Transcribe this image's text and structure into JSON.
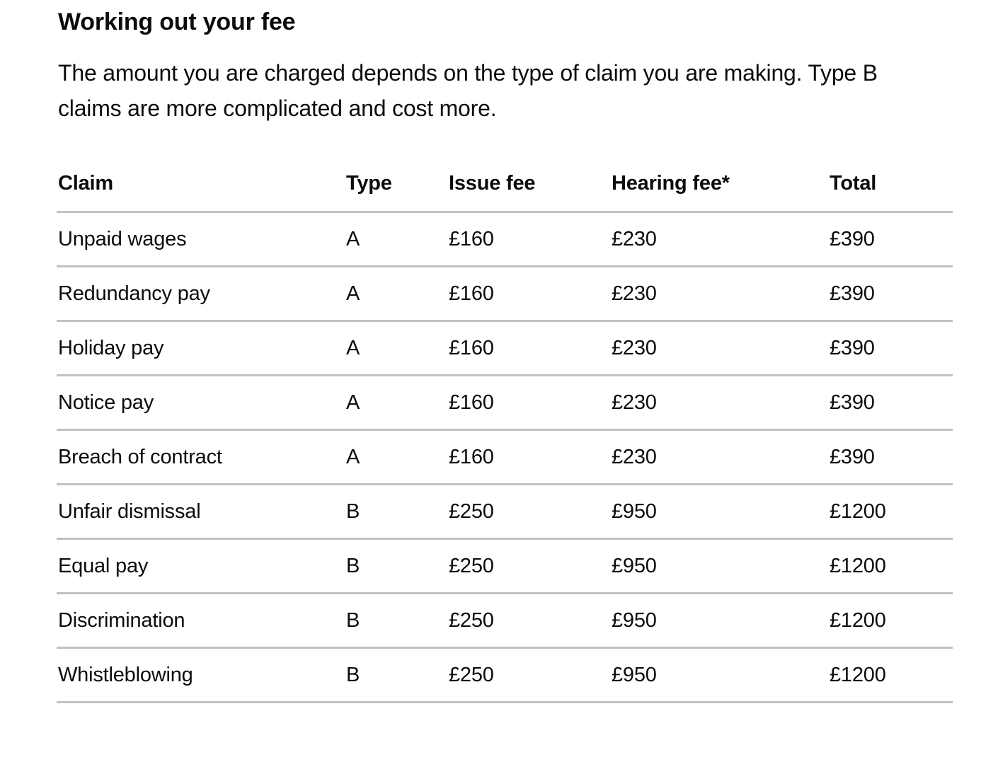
{
  "page": {
    "heading": "Working out your fee",
    "intro": "The amount you are charged depends on the type of claim you are making. Type B claims are more complicated and cost more."
  },
  "table": {
    "columns": [
      "Claim",
      "Type",
      "Issue fee",
      "Hearing fee*",
      "Total"
    ],
    "rows": [
      {
        "claim": "Unpaid wages",
        "type": "A",
        "issue_fee": "£160",
        "hearing_fee": "£230",
        "total": "£390"
      },
      {
        "claim": "Redundancy pay",
        "type": "A",
        "issue_fee": "£160",
        "hearing_fee": "£230",
        "total": "£390"
      },
      {
        "claim": "Holiday pay",
        "type": "A",
        "issue_fee": "£160",
        "hearing_fee": "£230",
        "total": "£390"
      },
      {
        "claim": "Notice pay",
        "type": "A",
        "issue_fee": "£160",
        "hearing_fee": "£230",
        "total": "£390"
      },
      {
        "claim": "Breach of contract",
        "type": "A",
        "issue_fee": "£160",
        "hearing_fee": "£230",
        "total": "£390"
      },
      {
        "claim": "Unfair dismissal",
        "type": "B",
        "issue_fee": "£250",
        "hearing_fee": "£950",
        "total": "£1200"
      },
      {
        "claim": "Equal pay",
        "type": "B",
        "issue_fee": "£250",
        "hearing_fee": "£950",
        "total": "£1200"
      },
      {
        "claim": "Discrimination",
        "type": "B",
        "issue_fee": "£250",
        "hearing_fee": "£950",
        "total": "£1200"
      },
      {
        "claim": "Whistleblowing",
        "type": "B",
        "issue_fee": "£250",
        "hearing_fee": "£950",
        "total": "£1200"
      }
    ]
  },
  "colors": {
    "text": "#0b0c0c",
    "table_border": "#bfc1c3",
    "background": "#ffffff"
  }
}
